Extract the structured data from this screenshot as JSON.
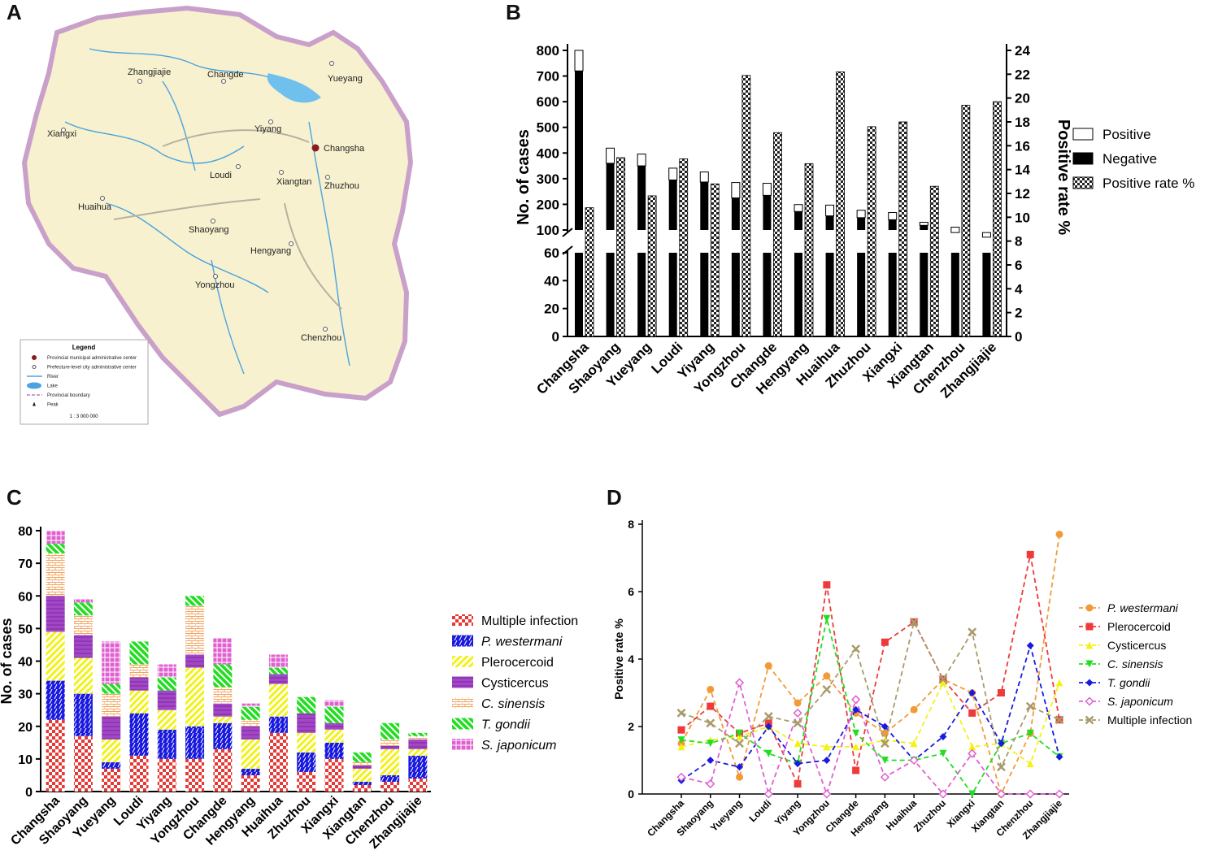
{
  "panel_labels": {
    "a": "A",
    "b": "B",
    "c": "C",
    "d": "D"
  },
  "map": {
    "cities": [
      {
        "name": "Zhangjiajie",
        "capital": false
      },
      {
        "name": "Changde",
        "capital": false
      },
      {
        "name": "Yueyang",
        "capital": false
      },
      {
        "name": "Xiangxi",
        "capital": false
      },
      {
        "name": "Yiyang",
        "capital": false
      },
      {
        "name": "Changsha",
        "capital": true
      },
      {
        "name": "Loudi",
        "capital": false
      },
      {
        "name": "Xiangtan",
        "capital": false
      },
      {
        "name": "Zhuzhou",
        "capital": false
      },
      {
        "name": "Huaihua",
        "capital": false
      },
      {
        "name": "Shaoyang",
        "capital": false
      },
      {
        "name": "Hengyang",
        "capital": false
      },
      {
        "name": "Yongzhou",
        "capital": false
      },
      {
        "name": "Chenzhou",
        "capital": false
      }
    ],
    "legend": {
      "title": "Legend",
      "items": [
        "Provincial municipal administrative center",
        "Prefecture-level city administrative center",
        "River",
        "Lake",
        "Provincial boundary",
        "Peak"
      ],
      "scale": "1 : 3 000 000"
    },
    "colors": {
      "land": "#f7f1cf",
      "river": "#4aa3df",
      "border": "#c9a0c9"
    }
  },
  "chart_data": [
    {
      "id": "B",
      "type": "bar",
      "categories": [
        "Changsha",
        "Shaoyang",
        "Yueyang",
        "Loudi",
        "Yiyang",
        "Yongzhou",
        "Changde",
        "Hengyang",
        "Huaihua",
        "Zhuzhou",
        "Xiangxi",
        "Xiangtan",
        "Chenzhou",
        "Zhangjiajie"
      ],
      "series": [
        {
          "name": "Positive",
          "values": [
            80,
            59,
            46,
            46,
            39,
            60,
            47,
            27,
            42,
            29,
            28,
            12,
            21,
            18
          ]
        },
        {
          "name": "Negative",
          "values": [
            720,
            360,
            350,
            295,
            287,
            225,
            235,
            172,
            155,
            148,
            140,
            118,
            90,
            72
          ]
        },
        {
          "name": "Positive rate %",
          "axis": "right",
          "values": [
            10.8,
            15.0,
            11.8,
            14.9,
            12.8,
            21.9,
            17.1,
            14.5,
            22.2,
            17.6,
            18.0,
            12.6,
            19.4,
            19.7
          ]
        }
      ],
      "ylabel": "No. of cases",
      "ylabel_right": "Positive rate %",
      "y_ticks_low": [
        0,
        20,
        40,
        60
      ],
      "y_ticks_high": [
        100,
        200,
        300,
        400,
        500,
        600,
        700,
        800
      ],
      "y_ticks_right": [
        0,
        2,
        4,
        6,
        8,
        10,
        12,
        14,
        16,
        18,
        20,
        22,
        24
      ],
      "y_break": [
        60,
        100
      ],
      "legend": [
        "Positive",
        "Negative",
        "Positive rate %"
      ],
      "colors": {
        "positive": "#ffffff",
        "negative": "#000000"
      }
    },
    {
      "id": "C",
      "type": "bar",
      "stacked": true,
      "categories": [
        "Changsha",
        "Shaoyang",
        "Yueyang",
        "Loudi",
        "Yiyang",
        "Yongzhou",
        "Changde",
        "Hengyang",
        "Huaihua",
        "Zhuzhou",
        "Xiangxi",
        "Xiangtan",
        "Chenzhou",
        "Zhangjiajie"
      ],
      "series": [
        {
          "name": "Multiple infection",
          "color": "#e53935",
          "values": [
            22,
            17,
            7,
            11,
            10,
            10,
            13,
            5,
            18,
            6,
            10,
            2,
            3,
            4
          ]
        },
        {
          "name": "P. westermani",
          "italic": true,
          "color": "#1a1adf",
          "values": [
            12,
            13,
            2,
            13,
            9,
            10,
            8,
            2,
            5,
            6,
            5,
            1,
            2,
            7
          ]
        },
        {
          "name": "Plerocercoid",
          "color": "#f2f21a",
          "values": [
            15,
            11,
            7,
            7,
            6,
            18,
            2,
            9,
            10,
            6,
            4,
            4,
            8,
            2
          ]
        },
        {
          "name": "Cysticercus",
          "color": "#a347c8",
          "values": [
            11,
            7,
            7,
            4,
            6,
            4,
            4,
            4,
            3,
            6,
            2,
            1,
            1,
            3
          ]
        },
        {
          "name": "C. sinensis",
          "italic": true,
          "color": "#f4a460",
          "values": [
            13,
            6,
            7,
            4,
            0,
            15,
            5,
            2,
            0,
            0,
            0,
            1,
            2,
            1
          ]
        },
        {
          "name": "T. gondii",
          "italic": true,
          "color": "#22dd22",
          "values": [
            3,
            4,
            3,
            7,
            4,
            3,
            7,
            4,
            2,
            5,
            5,
            3,
            5,
            1
          ]
        },
        {
          "name": "S. japonicum",
          "italic": true,
          "color": "#e060d0",
          "values": [
            4,
            1,
            13,
            0,
            4,
            0,
            8,
            1,
            4,
            0,
            2,
            0,
            0,
            0
          ]
        }
      ],
      "ylabel": "No. of cases",
      "ylim": [
        0,
        80
      ],
      "y_ticks": [
        0,
        10,
        20,
        30,
        40,
        50,
        60,
        70,
        80
      ]
    },
    {
      "id": "D",
      "type": "line",
      "categories": [
        "Changsha",
        "Shaoyang",
        "Yueyang",
        "Loudi",
        "Yiyang",
        "Yongzhou",
        "Changde",
        "Hengyang",
        "Huaihua",
        "Zhuzhou",
        "Xiangxi",
        "Xiangtan",
        "Chenzhou",
        "Zhangjiajie"
      ],
      "series": [
        {
          "name": "P. westermani",
          "italic": true,
          "color": "#f29a38",
          "marker": "circle",
          "values": [
            1.5,
            3.1,
            0.5,
            3.8,
            2.7,
            3.5,
            2.4,
            1.8,
            2.5,
            3.4,
            3.0,
            0.0,
            1.8,
            7.7
          ]
        },
        {
          "name": "Plerocercoid",
          "color": "#ee3a3a",
          "marker": "square",
          "values": [
            1.9,
            2.6,
            1.8,
            2.1,
            0.3,
            6.2,
            0.7,
            4.5,
            5.1,
            3.4,
            2.4,
            3.0,
            7.1,
            2.2
          ]
        },
        {
          "name": "Cysticercus",
          "color": "#f2f21a",
          "marker": "triangle-up",
          "values": [
            1.4,
            1.6,
            1.7,
            2.0,
            1.5,
            1.4,
            1.4,
            1.6,
            1.5,
            3.3,
            1.4,
            1.5,
            0.9,
            3.3
          ]
        },
        {
          "name": "C. sinensis",
          "italic": true,
          "color": "#22dd22",
          "marker": "triangle-down",
          "values": [
            1.6,
            1.5,
            1.8,
            1.2,
            0.9,
            5.2,
            1.8,
            1.0,
            1.0,
            1.2,
            0.0,
            1.5,
            1.8,
            1.1
          ]
        },
        {
          "name": "T. gondii",
          "italic": true,
          "color": "#1a1adf",
          "marker": "diamond",
          "values": [
            0.4,
            1.0,
            0.8,
            2.0,
            0.9,
            1.0,
            2.5,
            2.0,
            1.0,
            1.7,
            3.0,
            1.5,
            4.4,
            1.1
          ]
        },
        {
          "name": "S. japonicum",
          "italic": true,
          "color": "#e060d0",
          "marker": "diamond-open",
          "values": [
            0.5,
            0.3,
            3.3,
            0.0,
            2.4,
            0.0,
            2.8,
            0.5,
            1.0,
            0.0,
            1.2,
            0.0,
            0.0,
            0.0
          ]
        },
        {
          "name": "Multiple infection",
          "color": "#a89a6a",
          "marker": "x",
          "values": [
            2.4,
            2.1,
            1.5,
            2.3,
            2.1,
            3.1,
            4.3,
            1.5,
            5.1,
            3.4,
            4.8,
            0.8,
            2.6,
            2.2
          ]
        }
      ],
      "ylabel": "Positive rate %",
      "ylim": [
        0,
        8
      ],
      "y_ticks": [
        0,
        2,
        4,
        6,
        8
      ]
    }
  ]
}
